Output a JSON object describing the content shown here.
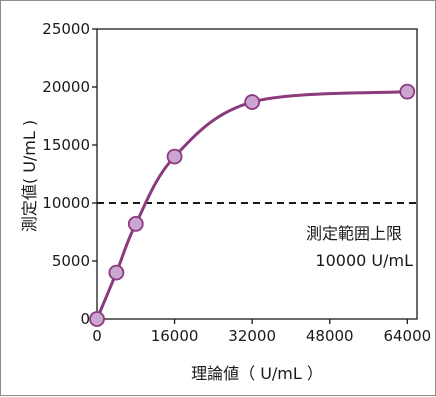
{
  "chart_data": {
    "type": "line",
    "title": "",
    "xlabel": "理論値（ U/mL ）",
    "ylabel": "測定値( U/mL )",
    "xlim": [
      0,
      66000
    ],
    "ylim": [
      0,
      25000
    ],
    "x_ticks": [
      0,
      16000,
      32000,
      48000,
      64000
    ],
    "x_tick_labels": [
      "0",
      "16000",
      "32000",
      "48000",
      "64000"
    ],
    "y_ticks": [
      0,
      5000,
      10000,
      15000,
      20000,
      25000
    ],
    "y_tick_labels": [
      "0",
      "5000",
      "10000",
      "15000",
      "20000",
      "25000"
    ],
    "grid": false,
    "legend": "none",
    "series": [
      {
        "x": [
          0,
          4000,
          8000,
          16000,
          32000,
          64000
        ],
        "y": [
          0,
          4000,
          8200,
          14000,
          18700,
          19600
        ],
        "color": "#8b3a7e",
        "marker_fill": "#c9a5cf",
        "marker_stroke": "#8b3a7e"
      }
    ],
    "reference_line": {
      "y": 10000,
      "style": "dashed",
      "color": "#1a1a1a"
    },
    "annotation": {
      "line1": "測定範囲上限",
      "line2": "10000 U/mL"
    }
  }
}
